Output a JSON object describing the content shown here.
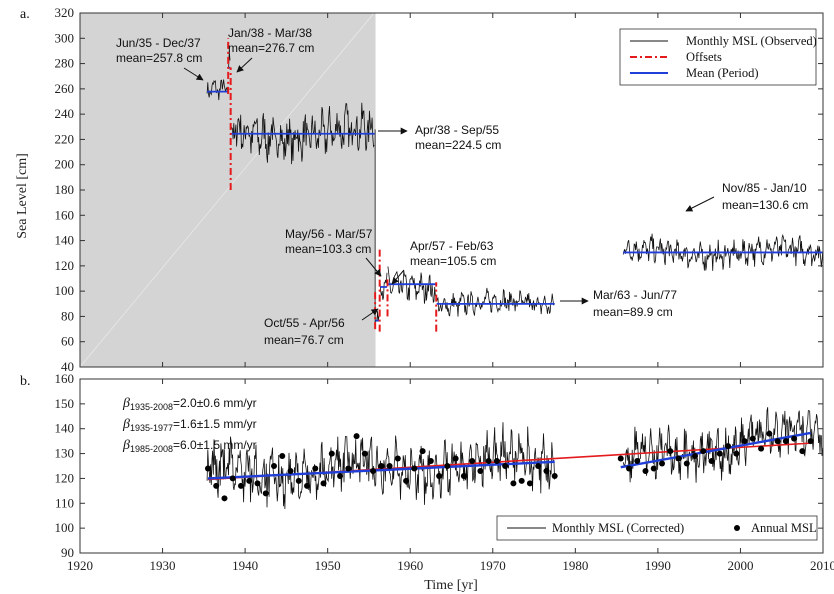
{
  "chart_data": [
    {
      "panel_label": "a.",
      "type": "line",
      "ylabel": "Sea Level [cm]",
      "xlim": [
        1920,
        2010
      ],
      "ylim": [
        40,
        320
      ],
      "yticks": [
        40,
        60,
        80,
        100,
        120,
        140,
        160,
        180,
        200,
        220,
        240,
        260,
        280,
        300,
        320
      ],
      "shaded_period": [
        1920,
        1955.8
      ],
      "legend": {
        "position": "top-right",
        "entries": [
          "Monthly MSL (Observed)",
          "Offsets",
          "Mean (Period)"
        ]
      },
      "colors": {
        "observed": "#111111",
        "offsets": "#e41a1c",
        "mean": "#1f3fd8",
        "shade": "#d4d4d4"
      },
      "series": [
        {
          "name": "Monthly MSL (Observed)",
          "segments": [
            {
              "start": 1935.4,
              "end": 1937.9,
              "mean": 257.8,
              "amp": 9
            },
            {
              "start": 1938.0,
              "end": 1938.2,
              "mean": 276.7,
              "amp": 15
            },
            {
              "start": 1938.3,
              "end": 1955.7,
              "mean": 224.5,
              "amp": 20
            },
            {
              "start": 1955.8,
              "end": 1956.25,
              "mean": 76.7,
              "amp": 8
            },
            {
              "start": 1956.35,
              "end": 1957.2,
              "mean": 103.3,
              "amp": 12
            },
            {
              "start": 1957.3,
              "end": 1963.1,
              "mean": 105.5,
              "amp": 13
            },
            {
              "start": 1963.2,
              "end": 1977.5,
              "mean": 89.9,
              "amp": 10
            },
            {
              "start": 1985.8,
              "end": 2010.0,
              "mean": 130.6,
              "amp": 12
            }
          ]
        }
      ],
      "means": [
        {
          "start": 1935.4,
          "end": 1937.9,
          "value": 257.8
        },
        {
          "start": 1938.0,
          "end": 1938.2,
          "value": 276.7
        },
        {
          "start": 1938.3,
          "end": 1955.7,
          "value": 224.5
        },
        {
          "start": 1955.8,
          "end": 1956.25,
          "value": 76.7
        },
        {
          "start": 1956.35,
          "end": 1957.2,
          "value": 103.3
        },
        {
          "start": 1957.3,
          "end": 1963.1,
          "value": 105.5
        },
        {
          "start": 1963.2,
          "end": 1977.5,
          "value": 89.9
        },
        {
          "start": 1985.8,
          "end": 2010.0,
          "value": 130.6
        }
      ],
      "offsets": [
        {
          "x": 1937.95,
          "y1": 256,
          "y2": 300
        },
        {
          "x": 1938.25,
          "y1": 180,
          "y2": 277
        },
        {
          "x": 1955.75,
          "y1": 70,
          "y2": 100
        },
        {
          "x": 1956.3,
          "y1": 68,
          "y2": 135
        },
        {
          "x": 1957.25,
          "y1": 80,
          "y2": 110
        },
        {
          "x": 1963.15,
          "y1": 68,
          "y2": 107
        }
      ],
      "annotations": [
        {
          "line1": "Jun/35 - Dec/37",
          "line2": "mean=257.8 cm"
        },
        {
          "line1": "Jan/38 - Mar/38",
          "line2": "mean=276.7 cm"
        },
        {
          "line1": "Apr/38 - Sep/55",
          "line2": "mean=224.5 cm"
        },
        {
          "line1": "May/56 - Mar/57",
          "line2": "mean=103.3 cm"
        },
        {
          "line1": "Apr/57 - Feb/63",
          "line2": "mean=105.5 cm"
        },
        {
          "line1": "Oct/55 - Apr/56",
          "line2": "mean=76.7 cm"
        },
        {
          "line1": "Mar/63 - Jun/77",
          "line2": "mean=89.9 cm"
        },
        {
          "line1": "Nov/85 - Jan/10",
          "line2": "mean=130.6 cm"
        }
      ]
    },
    {
      "panel_label": "b.",
      "type": "line",
      "xlabel": "Time [yr]",
      "xlim": [
        1920,
        2010
      ],
      "xticks": [
        1920,
        1930,
        1940,
        1950,
        1960,
        1970,
        1980,
        1990,
        2000,
        2010
      ],
      "ylim": [
        90,
        160
      ],
      "yticks": [
        90,
        100,
        110,
        120,
        130,
        140,
        150,
        160
      ],
      "legend": {
        "position": "bottom-right",
        "entries": [
          "Monthly MSL (Corrected)",
          "Annual MSL"
        ]
      },
      "colors": {
        "monthly": "#111111",
        "annual": "#000000",
        "trend_full": "#e41a1c",
        "trend_part": "#1f3fd8"
      },
      "annual_msl": {
        "x": [
          1935.5,
          1936.5,
          1937.5,
          1938.5,
          1939.5,
          1940.5,
          1941.5,
          1942.5,
          1943.5,
          1944.5,
          1945.5,
          1946.5,
          1947.5,
          1948.5,
          1949.5,
          1950.5,
          1951.5,
          1952.5,
          1953.5,
          1954.5,
          1955.5,
          1956.5,
          1957.5,
          1958.5,
          1959.5,
          1960.5,
          1961.5,
          1962.5,
          1963.5,
          1964.5,
          1965.5,
          1966.5,
          1967.5,
          1968.5,
          1969.5,
          1970.5,
          1971.5,
          1972.5,
          1973.5,
          1974.5,
          1975.5,
          1976.5,
          1977.5,
          1985.5,
          1986.5,
          1987.5,
          1988.5,
          1989.5,
          1990.5,
          1991.5,
          1992.5,
          1993.5,
          1994.5,
          1995.5,
          1996.5,
          1997.5,
          1998.5,
          1999.5,
          2000.5,
          2001.5,
          2002.5,
          2003.5,
          2004.5,
          2005.5,
          2006.5,
          2007.5,
          2008.5
        ],
        "y": [
          124,
          117,
          112,
          120,
          117,
          119,
          118,
          114,
          125,
          129,
          123,
          119,
          117,
          124,
          118,
          130,
          121,
          124,
          137,
          130,
          123,
          125,
          125,
          128,
          119,
          124,
          131,
          127,
          121,
          125,
          128,
          121,
          127,
          123,
          127,
          127,
          125,
          118,
          119,
          118,
          125,
          123,
          121,
          128,
          124,
          127,
          123,
          124,
          126,
          131,
          128,
          126,
          129,
          131,
          127,
          130,
          133,
          130,
          135,
          136,
          132,
          138,
          135,
          135,
          136,
          131,
          135
        ]
      },
      "series": [
        {
          "name": "Monthly MSL (Corrected)",
          "segments": [
            {
              "start": 1935.4,
              "end": 1977.5,
              "base": 121,
              "slope": 0.16,
              "amp": 12
            },
            {
              "start": 1985.8,
              "end": 2010.0,
              "base": 126,
              "slope": 0.6,
              "amp": 11
            }
          ]
        }
      ],
      "trends": [
        {
          "label_sub": "1935-2008",
          "rate": "=2.0±0.6 mm/yr",
          "x": [
            1935.5,
            2008.5
          ],
          "y": [
            119.6,
            134.2
          ]
        },
        {
          "label_sub": "1935-1977",
          "rate": "=1.6±1.5 mm/yr",
          "x": [
            1935.5,
            1977.5
          ],
          "y": [
            120.0,
            126.7
          ]
        },
        {
          "label_sub": "1985-2008",
          "rate": "=6.0±1.5 mm/yr",
          "x": [
            1985.5,
            2008.5
          ],
          "y": [
            124.5,
            138.3
          ]
        }
      ],
      "beta_symbol": "β"
    }
  ]
}
